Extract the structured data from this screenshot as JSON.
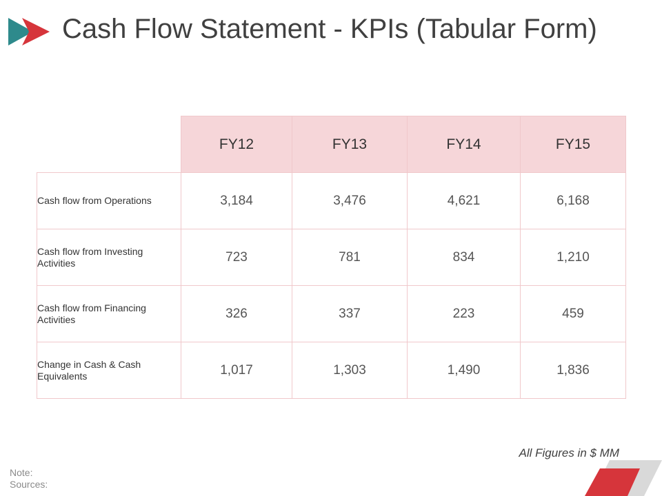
{
  "title": "Cash Flow Statement - KPIs (Tabular Form)",
  "table": {
    "columns": [
      "FY12",
      "FY13",
      "FY14",
      "FY15"
    ],
    "rows": [
      {
        "label": "Cash flow from Operations",
        "values": [
          "3,184",
          "3,476",
          "4,621",
          "6,168"
        ]
      },
      {
        "label": "Cash flow from Investing Activities",
        "values": [
          "723",
          "781",
          "834",
          "1,210"
        ]
      },
      {
        "label": "Cash flow from Financing Activities",
        "values": [
          "326",
          "337",
          "223",
          "459"
        ]
      },
      {
        "label": "Change in Cash & Cash Equivalents",
        "values": [
          "1,017",
          "1,303",
          "1,490",
          "1,836"
        ]
      }
    ]
  },
  "units_note": "All Figures in $ MM",
  "footer": {
    "note": "Note:",
    "sources": "Sources:"
  },
  "colors": {
    "teal": "#2e8a8c",
    "red": "#d6353b",
    "header_fill": "#f6d6d9",
    "grid": "#f0c8cb",
    "grey": "#d9d9d9"
  }
}
